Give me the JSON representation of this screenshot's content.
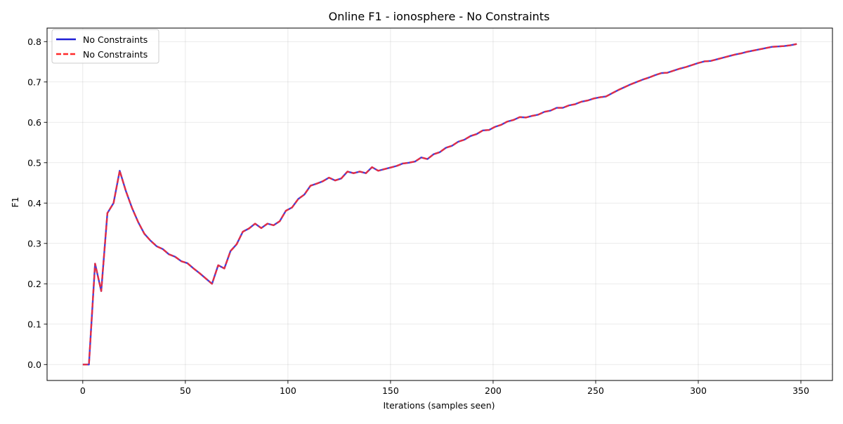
{
  "chart_data": {
    "type": "line",
    "title": "Online F1 - ionosphere - No Constraints",
    "xlabel": "Iterations (samples seen)",
    "ylabel": "F1",
    "xlim": [
      -17.4,
      365.4
    ],
    "ylim": [
      -0.0395,
      0.8335
    ],
    "xticks": [
      0,
      50,
      100,
      150,
      200,
      250,
      300,
      350
    ],
    "xtick_labels": [
      "0",
      "50",
      "100",
      "150",
      "200",
      "250",
      "300",
      "350"
    ],
    "yticks": [
      0.0,
      0.1,
      0.2,
      0.3,
      0.4,
      0.5,
      0.6,
      0.7,
      0.8
    ],
    "ytick_labels": [
      "0.0",
      "0.1",
      "0.2",
      "0.3",
      "0.4",
      "0.5",
      "0.6",
      "0.7",
      "0.8"
    ],
    "grid": true,
    "legend_position": "top-left",
    "x": [
      0,
      3,
      6,
      9,
      12,
      15,
      18,
      21,
      24,
      27,
      30,
      33,
      36,
      39,
      42,
      45,
      48,
      51,
      54,
      57,
      60,
      63,
      66,
      69,
      72,
      75,
      78,
      81,
      84,
      87,
      90,
      93,
      96,
      99,
      102,
      105,
      108,
      111,
      114,
      117,
      120,
      123,
      126,
      129,
      132,
      135,
      138,
      141,
      144,
      147,
      150,
      153,
      156,
      159,
      162,
      165,
      168,
      171,
      174,
      177,
      180,
      183,
      186,
      189,
      192,
      195,
      198,
      201,
      204,
      207,
      210,
      213,
      216,
      219,
      222,
      225,
      228,
      231,
      234,
      237,
      240,
      243,
      246,
      249,
      252,
      255,
      258,
      261,
      264,
      267,
      270,
      273,
      276,
      279,
      282,
      285,
      288,
      291,
      294,
      297,
      300,
      303,
      306,
      309,
      312,
      315,
      318,
      321,
      324,
      327,
      330,
      333,
      336,
      339,
      342,
      345,
      348
    ],
    "series": [
      {
        "name": "No Constraints",
        "color": "#1f1fd6",
        "style": "solid",
        "values": [
          0.0,
          0.0,
          0.25,
          0.182,
          0.375,
          0.4,
          0.48,
          0.43,
          0.388,
          0.353,
          0.324,
          0.307,
          0.293,
          0.286,
          0.273,
          0.267,
          0.256,
          0.251,
          0.238,
          0.226,
          0.213,
          0.2,
          0.246,
          0.238,
          0.281,
          0.298,
          0.329,
          0.337,
          0.349,
          0.338,
          0.349,
          0.345,
          0.355,
          0.381,
          0.389,
          0.41,
          0.421,
          0.443,
          0.448,
          0.454,
          0.463,
          0.456,
          0.461,
          0.478,
          0.474,
          0.478,
          0.474,
          0.489,
          0.48,
          0.484,
          0.488,
          0.492,
          0.498,
          0.5,
          0.503,
          0.513,
          0.509,
          0.521,
          0.526,
          0.537,
          0.542,
          0.552,
          0.557,
          0.566,
          0.571,
          0.58,
          0.581,
          0.589,
          0.594,
          0.602,
          0.606,
          0.613,
          0.612,
          0.616,
          0.619,
          0.626,
          0.629,
          0.636,
          0.636,
          0.642,
          0.645,
          0.651,
          0.654,
          0.659,
          0.662,
          0.664,
          0.672,
          0.68,
          0.687,
          0.694,
          0.7,
          0.706,
          0.711,
          0.717,
          0.722,
          0.723,
          0.728,
          0.733,
          0.737,
          0.742,
          0.747,
          0.751,
          0.752,
          0.756,
          0.76,
          0.764,
          0.768,
          0.771,
          0.775,
          0.778,
          0.781,
          0.784,
          0.787,
          0.788,
          0.789,
          0.791,
          0.794
        ]
      },
      {
        "name": "No Constraints",
        "color": "#ff2a2a",
        "style": "dashed",
        "values": [
          0.0,
          0.0,
          0.25,
          0.182,
          0.375,
          0.4,
          0.48,
          0.43,
          0.388,
          0.353,
          0.324,
          0.307,
          0.293,
          0.286,
          0.273,
          0.267,
          0.256,
          0.251,
          0.238,
          0.226,
          0.213,
          0.2,
          0.246,
          0.238,
          0.281,
          0.298,
          0.329,
          0.337,
          0.349,
          0.338,
          0.349,
          0.345,
          0.355,
          0.381,
          0.389,
          0.41,
          0.421,
          0.443,
          0.448,
          0.454,
          0.463,
          0.456,
          0.461,
          0.478,
          0.474,
          0.478,
          0.474,
          0.489,
          0.48,
          0.484,
          0.488,
          0.492,
          0.498,
          0.5,
          0.503,
          0.513,
          0.509,
          0.521,
          0.526,
          0.537,
          0.542,
          0.552,
          0.557,
          0.566,
          0.571,
          0.58,
          0.581,
          0.589,
          0.594,
          0.602,
          0.606,
          0.613,
          0.612,
          0.616,
          0.619,
          0.626,
          0.629,
          0.636,
          0.636,
          0.642,
          0.645,
          0.651,
          0.654,
          0.659,
          0.662,
          0.664,
          0.672,
          0.68,
          0.687,
          0.694,
          0.7,
          0.706,
          0.711,
          0.717,
          0.722,
          0.723,
          0.728,
          0.733,
          0.737,
          0.742,
          0.747,
          0.751,
          0.752,
          0.756,
          0.76,
          0.764,
          0.768,
          0.771,
          0.775,
          0.778,
          0.781,
          0.784,
          0.787,
          0.788,
          0.789,
          0.791,
          0.794
        ]
      }
    ]
  }
}
